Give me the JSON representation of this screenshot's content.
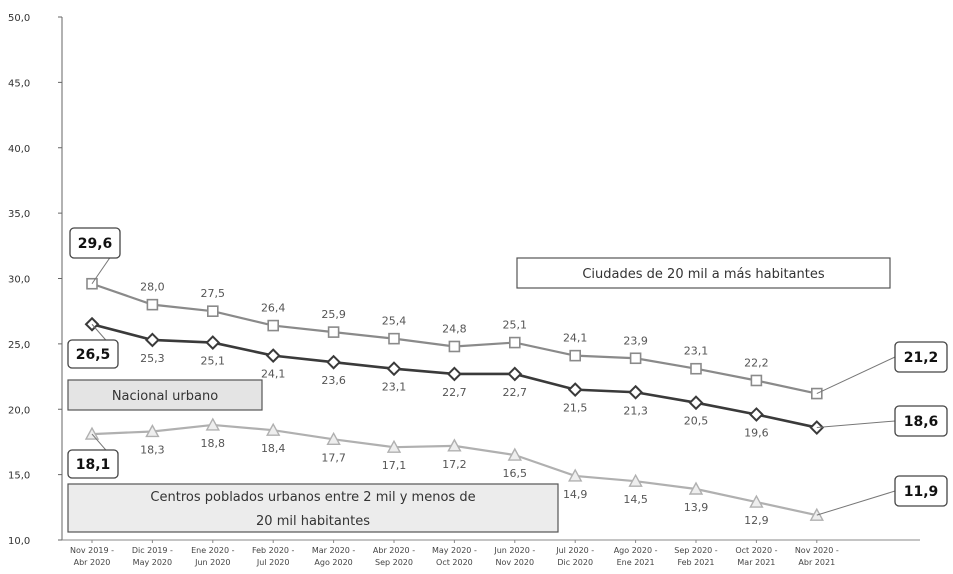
{
  "chart_data": {
    "type": "line",
    "categories": [
      [
        "Nov 2019 -",
        "Abr 2020"
      ],
      [
        "Dic 2019 -",
        "May 2020"
      ],
      [
        "Ene 2020 -",
        "Jun 2020"
      ],
      [
        "Feb 2020 -",
        "Jul 2020"
      ],
      [
        "Mar 2020 -",
        "Ago 2020"
      ],
      [
        "Abr 2020 -",
        "Sep 2020"
      ],
      [
        "May 2020 -",
        "Oct 2020"
      ],
      [
        "Jun 2020 -",
        "Nov 2020"
      ],
      [
        "Jul 2020 -",
        "Dic 2020"
      ],
      [
        "Ago 2020 -",
        "Ene 2021"
      ],
      [
        "Sep 2020 -",
        "Feb 2021"
      ],
      [
        "Oct 2020 -",
        "Mar 2021"
      ],
      [
        "Nov 2020 -",
        "Abr 2021"
      ]
    ],
    "ylim": [
      10,
      50
    ],
    "yticks": [
      "10,0",
      "15,0",
      "20,0",
      "25,0",
      "30,0",
      "35,0",
      "40,0",
      "45,0",
      "50,0"
    ],
    "series": [
      {
        "name": "Ciudades de 20 mil a más habitantes",
        "values": [
          29.6,
          28.0,
          27.5,
          26.4,
          25.9,
          25.4,
          24.8,
          25.1,
          24.1,
          23.9,
          23.1,
          22.2,
          21.2
        ],
        "labels": [
          "29,6",
          "28,0",
          "27,5",
          "26,4",
          "25,9",
          "25,4",
          "24,8",
          "25,1",
          "24,1",
          "23,9",
          "23,1",
          "22,2",
          "21,2"
        ],
        "color": "#8a8a8a",
        "marker": "square"
      },
      {
        "name": "Nacional urbano",
        "values": [
          26.5,
          25.3,
          25.1,
          24.1,
          23.6,
          23.1,
          22.7,
          22.7,
          21.5,
          21.3,
          20.5,
          19.6,
          18.6
        ],
        "labels": [
          "26,5",
          "25,3",
          "25,1",
          "24,1",
          "23,6",
          "23,1",
          "22,7",
          "22,7",
          "21,5",
          "21,3",
          "20,5",
          "19,6",
          "18,6"
        ],
        "color": "#3a3a3a",
        "marker": "diamond"
      },
      {
        "name": "Centros poblados urbanos entre 2 mil y menos de 20 mil habitantes",
        "name_lines": [
          "Centros poblados urbanos entre 2 mil y menos de",
          "20 mil habitantes"
        ],
        "values": [
          18.1,
          18.3,
          18.8,
          18.4,
          17.7,
          17.1,
          17.2,
          16.5,
          14.9,
          14.5,
          13.9,
          12.9,
          11.9
        ],
        "labels": [
          "18,1",
          "18,3",
          "18,8",
          "18,4",
          "17,7",
          "17,1",
          "17,2",
          "16,5",
          "14,9",
          "14,5",
          "13,9",
          "12,9",
          "11,9"
        ],
        "color": "#b0b0b0",
        "marker": "triangle"
      }
    ],
    "grid": false,
    "legend": "inline labels"
  }
}
